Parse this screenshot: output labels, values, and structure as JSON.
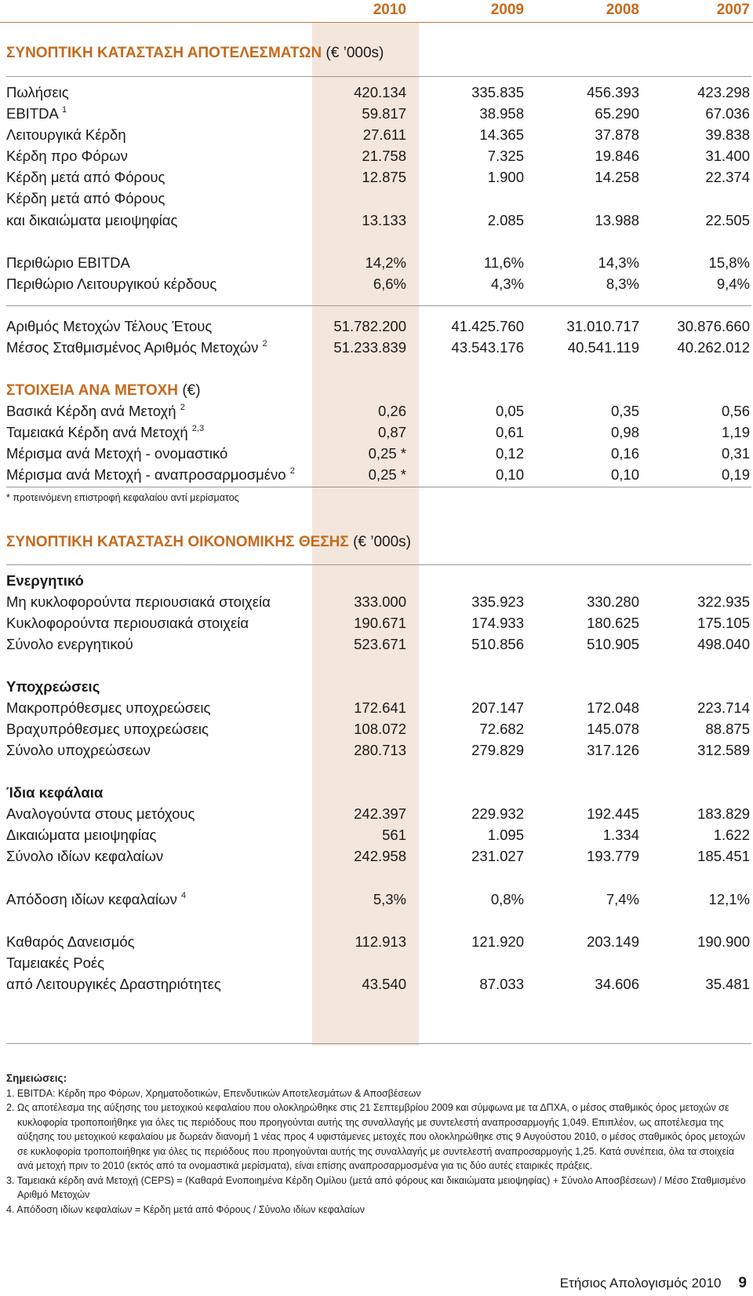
{
  "years": [
    "2010",
    "2009",
    "2008",
    "2007"
  ],
  "colors": {
    "accent": "#c56a1c",
    "band": "#f3e6dc"
  },
  "sec1": {
    "title": "ΣΥΝΟΠΤΙΚΗ ΚΑΤΑΣΤΑΣΗ ΑΠΟΤΕΛΕΣΜΑΤΩΝ",
    "unit": "(€ ’000s)"
  },
  "results": [
    {
      "label": "Πωλήσεις",
      "sup": "",
      "values": [
        "420.134",
        "335.835",
        "456.393",
        "423.298"
      ]
    },
    {
      "label": "EBITDA",
      "sup": "1",
      "values": [
        "59.817",
        "38.958",
        "65.290",
        "67.036"
      ]
    },
    {
      "label": "Λειτουργικά Κέρδη",
      "sup": "",
      "values": [
        "27.611",
        "14.365",
        "37.878",
        "39.838"
      ]
    },
    {
      "label": "Κέρδη προ Φόρων",
      "sup": "",
      "values": [
        "21.758",
        "7.325",
        "19.846",
        "31.400"
      ]
    },
    {
      "label": "Κέρδη μετά από Φόρους",
      "sup": "",
      "values": [
        "12.875",
        "1.900",
        "14.258",
        "22.374"
      ]
    },
    {
      "label": "Κέρδη μετά από Φόρους",
      "sup": "",
      "values": [
        "",
        "",
        "",
        ""
      ]
    },
    {
      "label": "και δικαιώματα μειοψηφίας",
      "sup": "",
      "values": [
        "13.133",
        "2.085",
        "13.988",
        "22.505"
      ]
    }
  ],
  "margins": [
    {
      "label": "Περιθώριο EBITDA",
      "values": [
        "14,2%",
        "11,6%",
        "14,3%",
        "15,8%"
      ]
    },
    {
      "label": "Περιθώριο Λειτουργικού κέρδους",
      "values": [
        "6,6%",
        "4,3%",
        "8,3%",
        "9,4%"
      ]
    }
  ],
  "shares": [
    {
      "label": "Αριθμός Μετοχών Τέλους Έτους",
      "sup": "",
      "values": [
        "51.782.200",
        "41.425.760",
        "31.010.717",
        "30.876.660"
      ]
    },
    {
      "label": "Μέσος Σταθμισμένος Αριθμός Μετοχών",
      "sup": "2",
      "values": [
        "51.233.839",
        "43.543.176",
        "40.541.119",
        "40.262.012"
      ]
    }
  ],
  "sec2": {
    "title": "ΣΤΟΙΧΕΙΑ ΑΝΑ ΜΕΤΟΧΗ",
    "unit": "(€)"
  },
  "pershare": [
    {
      "label": "Βασικά Κέρδη ανά Μετοχή",
      "sup": "2",
      "values": [
        "0,26",
        "0,05",
        "0,35",
        "0,56"
      ]
    },
    {
      "label": "Ταμειακά Κέρδη ανά Μετοχή",
      "sup": "2,3",
      "values": [
        "0,87",
        "0,61",
        "0,98",
        "1,19"
      ]
    },
    {
      "label": "Μέρισμα ανά Μετοχή - ονομαστικό",
      "sup": "",
      "values": [
        "0,25 *",
        "0,12",
        "0,16",
        "0,31"
      ]
    },
    {
      "label": "Μέρισμα ανά Μετοχή - αναπροσαρμοσμένο",
      "sup": "2",
      "values": [
        "0,25 *",
        "0,10",
        "0,10",
        "0,19"
      ]
    }
  ],
  "dividend_note": "* προτεινόμενη επιστροφή κεφαλαίου αντί μερίσματος",
  "sec3": {
    "title": "ΣΥΝΟΠΤΙΚΗ ΚΑΤΑΣΤΑΣΗ ΟΙΚΟΝΟΜΙΚΗΣ ΘΕΣΗΣ",
    "unit": "(€ ’000s)"
  },
  "assets": {
    "heading": "Ενεργητικό",
    "rows": [
      {
        "label": "Μη κυκλοφορούντα περιουσιακά στοιχεία",
        "values": [
          "333.000",
          "335.923",
          "330.280",
          "322.935"
        ]
      },
      {
        "label": "Κυκλοφορούντα περιουσιακά στοιχεία",
        "values": [
          "190.671",
          "174.933",
          "180.625",
          "175.105"
        ]
      },
      {
        "label": "Σύνολο ενεργητικού",
        "values": [
          "523.671",
          "510.856",
          "510.905",
          "498.040"
        ]
      }
    ]
  },
  "liabilities": {
    "heading": "Υποχρεώσεις",
    "rows": [
      {
        "label": "Μακροπρόθεσμες υποχρεώσεις",
        "values": [
          "172.641",
          "207.147",
          "172.048",
          "223.714"
        ]
      },
      {
        "label": "Βραχυπρόθεσμες υποχρεώσεις",
        "values": [
          "108.072",
          "72.682",
          "145.078",
          "88.875"
        ]
      },
      {
        "label": "Σύνολο υποχρεώσεων",
        "values": [
          "280.713",
          "279.829",
          "317.126",
          "312.589"
        ]
      }
    ]
  },
  "equity": {
    "heading": "Ίδια κεφάλαια",
    "rows": [
      {
        "label": "Αναλογούντα στους μετόχους",
        "values": [
          "242.397",
          "229.932",
          "192.445",
          "183.829"
        ]
      },
      {
        "label": "Δικαιώματα μειοψηφίας",
        "values": [
          "561",
          "1.095",
          "1.334",
          "1.622"
        ]
      },
      {
        "label": "Σύνολο ιδίων κεφαλαίων",
        "values": [
          "242.958",
          "231.027",
          "193.779",
          "185.451"
        ]
      }
    ]
  },
  "roe": {
    "label": "Απόδοση ιδίων κεφαλαίων",
    "sup": "4",
    "values": [
      "5,3%",
      "0,8%",
      "7,4%",
      "12,1%"
    ]
  },
  "net_debt": {
    "label": "Καθαρός Δανεισμός",
    "values": [
      "112.913",
      "121.920",
      "203.149",
      "190.900"
    ]
  },
  "cashflow": {
    "label1": "Ταμειακές Ροές",
    "label2": "από Λειτουργικές Δραστηριότητες",
    "values": [
      "43.540",
      "87.033",
      "34.606",
      "35.481"
    ]
  },
  "notes": {
    "title": "Σημειώσεις:",
    "items": [
      "1. EBITDA: Κέρδη προ Φόρων, Χρηματοδοτικών, Επενδυτικών Αποτελεσμάτων & Αποσβέσεων",
      "2. Ως αποτέλεσμα της αύξησης του μετοχικού κεφαλαίου που ολοκληρώθηκε στις 21 Σεπτεμβρίου 2009 και σύμφωνα με τα ΔΠΧΑ, ο μέσος σταθμικός όρος μετοχών σε κυκλοφορία τροποποιήθηκε για όλες τις περιόδους που προηγούνται αυτής της συναλλαγής με συντελεστή αναπροσαρμογής 1,049. Επιπλέον, ως αποτέλεσμα της αύξησης του μετοχικού κεφαλαίου με δωρεάν διανομή 1 νέας προς 4 υφιστάμενες μετοχές που ολοκληρώθηκε στις 9 Αυγούστου 2010, ο μέσος σταθμικός όρος μετοχών σε κυκλοφορία τροποποιήθηκε για όλες τις περιόδους που προηγούνται αυτής της συναλλαγής με συντελεστή αναπροσαρμογής 1,25. Κατά συνέπεια, όλα τα στοιχεία ανά μετοχή πριν το 2010 (εκτός από τα ονομαστικά μερίσματα), είναι επίσης αναπροσαρμοσμένα για τις δύο αυτές εταιρικές πράξεις.",
      "3. Ταμειακά κέρδη ανά Μετοχή (CEPS) = (Καθαρά Ενοποιημένα Κέρδη Ομίλου (μετά από φόρους και δικαιώματα μειοψηφίας) + Σύνολο Αποσβέσεων) / Μέσο Σταθμισμένο Αριθμό Μετοχών",
      "4. Απόδοση ιδίων κεφαλαίων = Κέρδη μετά από Φόρους / Σύνολο ιδίων κεφαλαίων"
    ]
  },
  "footer": {
    "text": "Ετήσιος Απολογισμός 2010",
    "page": "9"
  }
}
